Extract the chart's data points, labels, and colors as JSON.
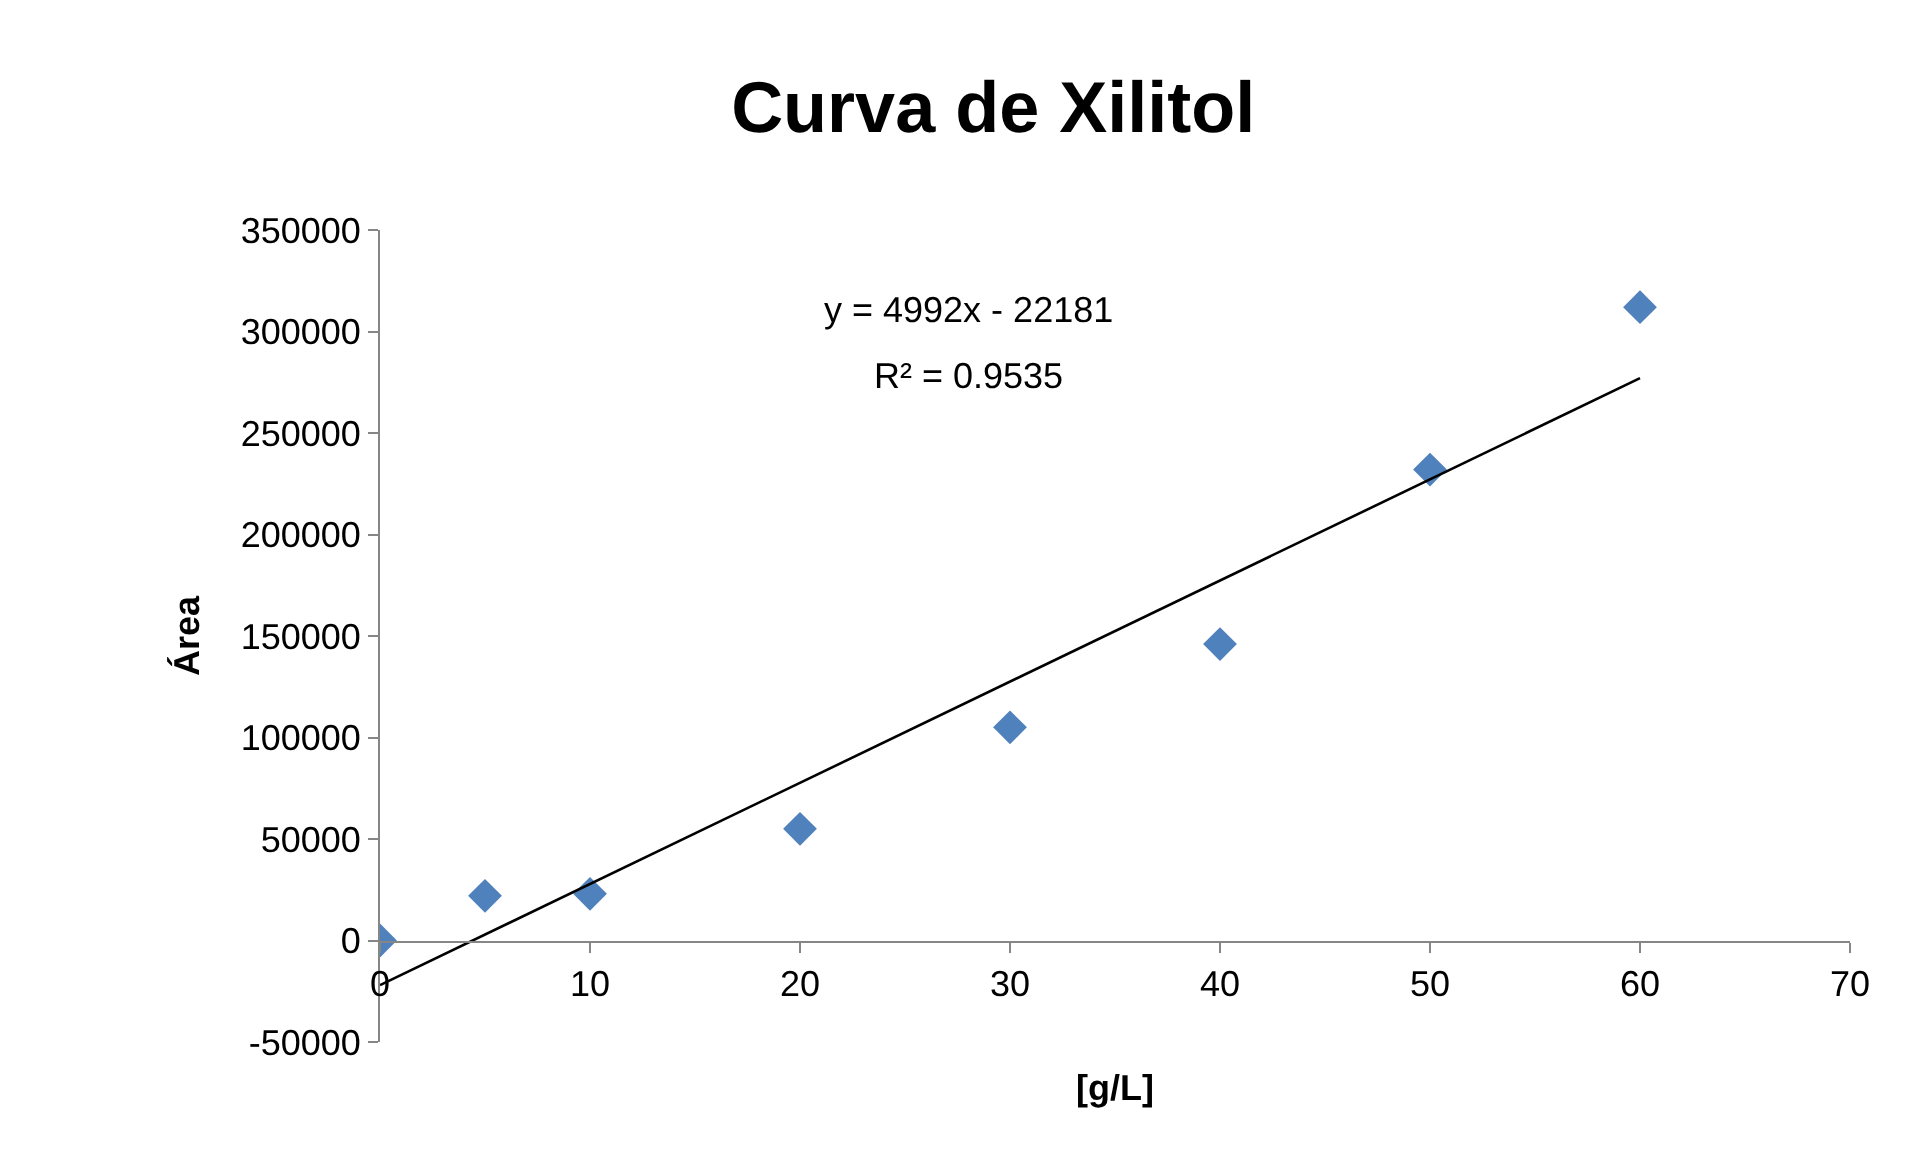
{
  "chart_data": {
    "type": "scatter",
    "title": "Curva de Xilitol",
    "xlabel": "[g/L]",
    "ylabel": "Área",
    "x": [
      0,
      5,
      10,
      20,
      30,
      40,
      50,
      60
    ],
    "series": [
      {
        "type": "scatter",
        "color": "#4f81bd",
        "marker": "diamond",
        "values": [
          0,
          22000,
          23000,
          55000,
          105000,
          146000,
          232000,
          312000
        ]
      },
      {
        "type": "line",
        "color": "#000000",
        "x": [
          0,
          60
        ],
        "values": [
          -22000,
          277000
        ]
      }
    ],
    "annotations": [
      "y = 4992x - 22181",
      "R² = 0.9535"
    ],
    "xlim": [
      0,
      70
    ],
    "xticks": [
      0,
      10,
      20,
      30,
      40,
      50,
      60,
      70
    ],
    "ylim": [
      -50000,
      350000
    ],
    "yticks": [
      -50000,
      0,
      50000,
      100000,
      150000,
      200000,
      250000,
      300000,
      350000
    ],
    "grid": false,
    "legend": false
  }
}
